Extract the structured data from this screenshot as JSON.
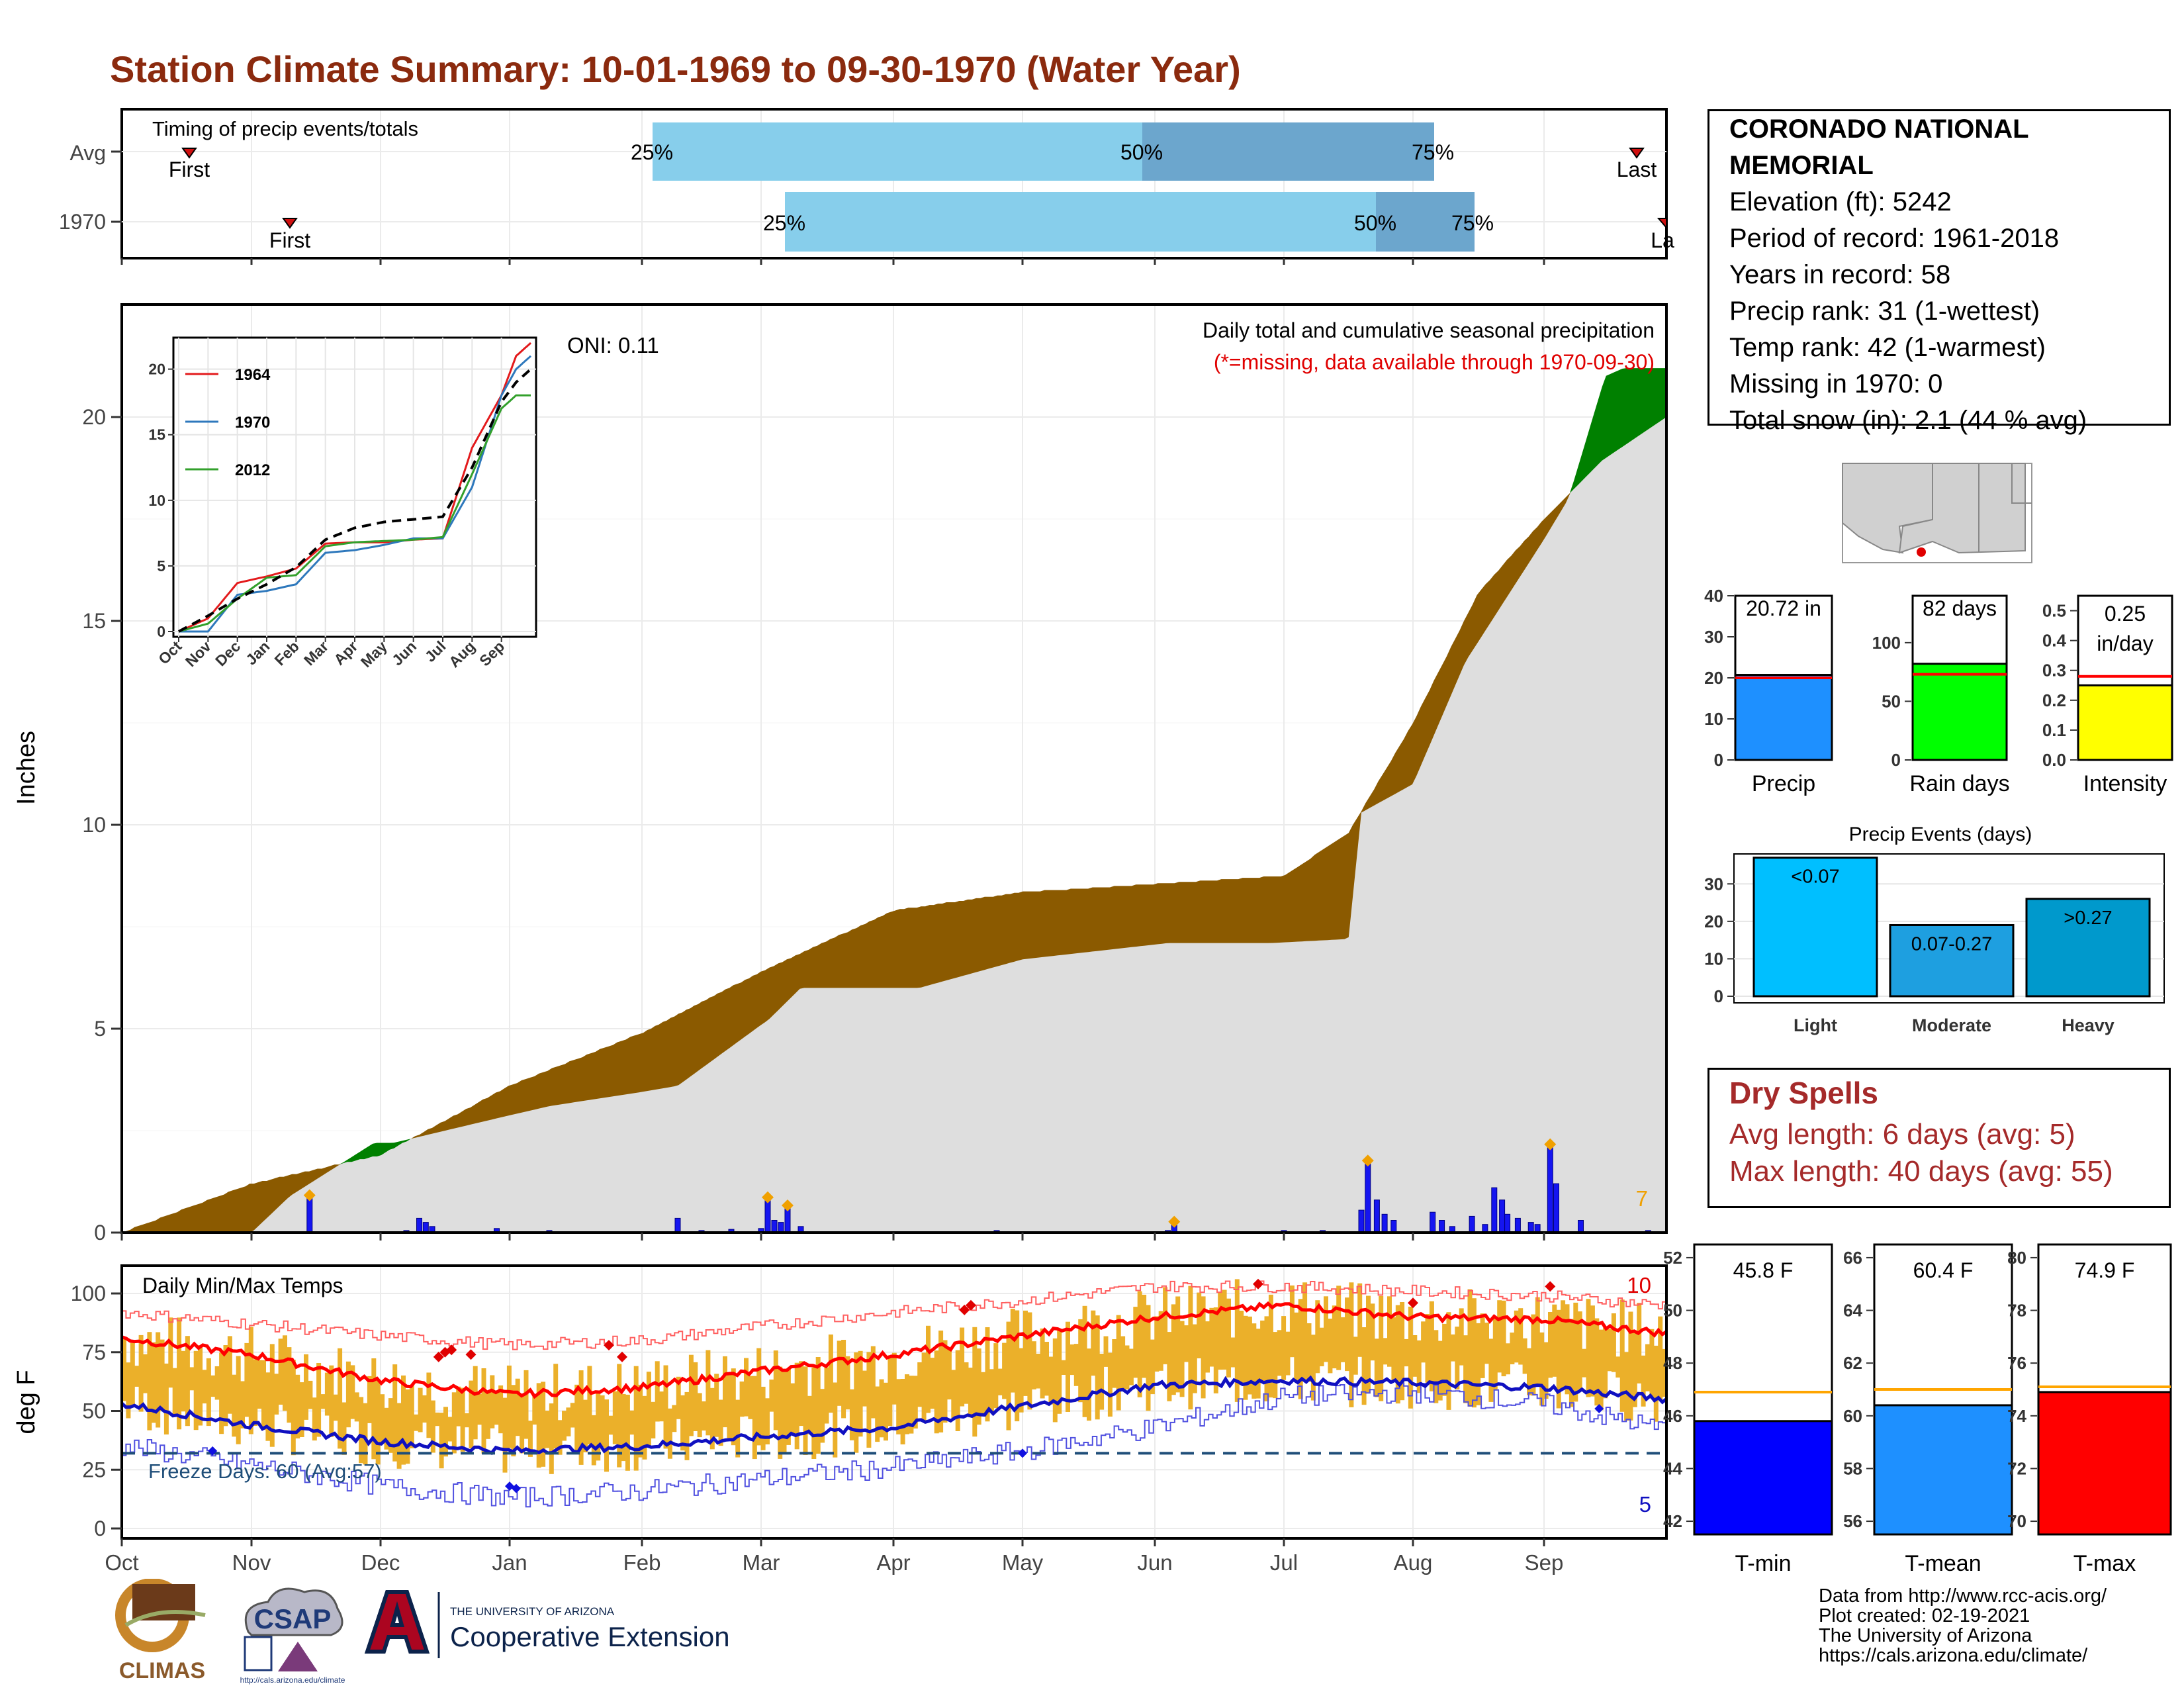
{
  "title": "Station Climate Summary: 10-01-1969 to 09-30-1970 (Water Year)",
  "months": [
    "Oct",
    "Nov",
    "Dec",
    "Jan",
    "Feb",
    "Mar",
    "Apr",
    "May",
    "Jun",
    "Jul",
    "Aug",
    "Sep"
  ],
  "timing": {
    "label": "Timing of precip events/totals",
    "rows": [
      {
        "name": "Avg",
        "first_label": "First",
        "last_label": "Last",
        "p25_label": "25%",
        "p50_label": "50%",
        "p75_label": "75%"
      },
      {
        "name": "1970",
        "first_label": "First",
        "last_label": "La",
        "p25_label": "25%",
        "p50_label": "50%",
        "p75_label": "75%"
      }
    ]
  },
  "station": {
    "name": "CORONADO NATIONAL MEMORIAL",
    "elevation": "Elevation (ft): 5242",
    "period": "Period of record: 1961-2018",
    "years": "Years in record: 58",
    "precip_rank": "Precip rank: 31 (1-wettest)",
    "temp_rank": "Temp rank: 42 (1-warmest)",
    "missing": "Missing in 1970: 0",
    "snow": "Total snow (in): 2.1 (44 % avg)"
  },
  "precip_panel": {
    "ylabel": "Inches",
    "y_ticks": [
      "0",
      "5",
      "10",
      "15",
      "20"
    ],
    "oni": "ONI: 0.11",
    "title": "Daily total and cumulative seasonal precipitation",
    "note": "(*=missing, data available through 1970-09-30)",
    "extreme_count": "7"
  },
  "inset": {
    "y_ticks": [
      "0",
      "5",
      "10",
      "15",
      "20"
    ],
    "x_ticks": [
      "Oct",
      "Nov",
      "Dec",
      "Jan",
      "Feb",
      "Mar",
      "Apr",
      "May",
      "Jun",
      "Jul",
      "Aug",
      "Sep"
    ],
    "legend": [
      "1964",
      "1970",
      "2012"
    ]
  },
  "temp_panel": {
    "label": "Daily Min/Max Temps",
    "ylabel": "deg F",
    "y_ticks": [
      "0",
      "25",
      "50",
      "75",
      "100"
    ],
    "freeze": "Freeze Days: 60 (Avg:57)",
    "hot_count": "10",
    "cold_count": "5"
  },
  "mini_bars": {
    "precip": {
      "label": "Precip",
      "value_label": "20.72 in",
      "ticks": [
        "0",
        "10",
        "20",
        "30",
        "40"
      ]
    },
    "rain_days": {
      "label": "Rain days",
      "value_label": "82 days",
      "ticks": [
        "0",
        "50",
        "100"
      ]
    },
    "intensity": {
      "label": "Intensity",
      "value_label_1": "0.25",
      "value_label_2": "in/day",
      "ticks": [
        "0.0",
        "0.1",
        "0.2",
        "0.3",
        "0.4",
        "0.5"
      ]
    }
  },
  "events": {
    "title": "Precip Events (days)",
    "ticks": [
      "0",
      "10",
      "20",
      "30"
    ],
    "bars": [
      {
        "cat": "Light",
        "label": "<0.07",
        "value": 37
      },
      {
        "cat": "Moderate",
        "label": "0.07-0.27",
        "value": 19
      },
      {
        "cat": "Heavy",
        "label": ">0.27",
        "value": 26
      }
    ]
  },
  "dry_spells": {
    "title": "Dry Spells",
    "avg": "Avg length: 6 days (avg: 5)",
    "max": "Max length: 40 days (avg: 55)"
  },
  "temp_bars": {
    "tmin": {
      "label": "T-min",
      "value_label": "45.8 F",
      "ticks": [
        "42",
        "44",
        "46",
        "48",
        "50",
        "52"
      ]
    },
    "tmean": {
      "label": "T-mean",
      "value_label": "60.4 F",
      "ticks": [
        "56",
        "58",
        "60",
        "62",
        "64",
        "66"
      ]
    },
    "tmax": {
      "label": "T-max",
      "value_label": "74.9 F",
      "ticks": [
        "70",
        "72",
        "74",
        "76",
        "78",
        "80"
      ]
    }
  },
  "credits": {
    "line1": "Data from http://www.rcc-acis.org/",
    "line2": "Plot created: 02-19-2021",
    "line3": "The University of Arizona",
    "line4": "https://cals.arizona.edu/climate/"
  },
  "logos": {
    "climas": "CLIMAS",
    "csap": "CSAP",
    "csap_url": "http://cals.arizona.edu/climate",
    "ua_top": "THE UNIVERSITY OF ARIZONA",
    "ua_bottom": "Cooperative Extension"
  },
  "colors": {
    "title": "#8B2A0E",
    "deficit": "#8B5A00",
    "surplus": "#008000",
    "observed_line": "#1515D6",
    "normal_fill": "#DEDEDE",
    "timing_light": "#87CEEB",
    "timing_dark": "#6CA6CD",
    "temp_bars": "#EBB02A",
    "tmax_line": "#FF0000",
    "tmin_line": "#1010C0"
  },
  "chart_data": [
    {
      "type": "area",
      "name": "cumulative precipitation",
      "x_unit": "month (water year, Oct=0)",
      "ylabel": "Inches",
      "ylim": [
        0,
        22.7
      ],
      "series": [
        {
          "name": "average",
          "x": [
            0,
            1,
            2,
            3,
            4,
            5,
            6,
            7,
            8,
            9,
            9.5,
            10,
            10.5,
            11,
            11.5,
            12
          ],
          "y": [
            0,
            1.2,
            1.9,
            3.6,
            4.9,
            6.4,
            7.9,
            8.35,
            8.55,
            8.75,
            9.8,
            12.5,
            15.7,
            17.5,
            19.0,
            20.0
          ]
        },
        {
          "name": "observed 1970",
          "x": [
            0,
            1,
            1.3,
            1.95,
            2.1,
            3.3,
            4.3,
            5.05,
            5.3,
            6.2,
            7,
            8.1,
            8.9,
            9.5,
            9.6,
            10,
            10.4,
            10.8,
            11.2,
            11.5,
            11.65,
            12
          ],
          "y": [
            0,
            0,
            0.9,
            2.2,
            2.2,
            3.1,
            3.6,
            5.2,
            6.0,
            6.0,
            6.7,
            7.1,
            7.1,
            7.2,
            10.3,
            11.0,
            14.0,
            16.0,
            18.0,
            21.0,
            21.2,
            21.2
          ]
        }
      ],
      "daily_highlights": [
        {
          "x": 1.45,
          "y": 0.85
        },
        {
          "x": 5.05,
          "y": 0.8
        },
        {
          "x": 5.2,
          "y": 0.6
        },
        {
          "x": 8.15,
          "y": 0.2
        },
        {
          "x": 9.65,
          "y": 1.7
        },
        {
          "x": 11.05,
          "y": 2.1
        }
      ]
    },
    {
      "type": "line",
      "name": "inset cumulative comparison",
      "ylim": [
        0,
        22
      ],
      "series": [
        {
          "name": "1964",
          "x": [
            0,
            1,
            2,
            3,
            4,
            5,
            6,
            7,
            8,
            9,
            10,
            11,
            11.5,
            12
          ],
          "y": [
            0,
            1,
            3.7,
            4.2,
            4.8,
            6.7,
            6.8,
            6.8,
            7.0,
            7.1,
            14,
            18,
            21,
            22
          ]
        },
        {
          "name": "1970",
          "x": [
            0,
            1,
            2,
            3,
            4,
            5,
            6,
            7,
            8,
            9,
            10,
            11,
            11.5,
            12
          ],
          "y": [
            0,
            0,
            2.8,
            3.1,
            3.6,
            6.0,
            6.2,
            6.6,
            7.1,
            7.1,
            11,
            18,
            20,
            21
          ]
        },
        {
          "name": "2012",
          "x": [
            0,
            1,
            2,
            3,
            4,
            5,
            6,
            7,
            8,
            9,
            10,
            11,
            11.5,
            12
          ],
          "y": [
            0,
            0.6,
            2.5,
            4.1,
            4.3,
            6.5,
            6.8,
            6.9,
            7.0,
            7.2,
            12,
            17,
            18,
            18
          ]
        },
        {
          "name": "average",
          "x": [
            0,
            1,
            2,
            3,
            4,
            5,
            6,
            7,
            8,
            9,
            10,
            11,
            11.5,
            12
          ],
          "y": [
            0,
            1.2,
            2.5,
            3.6,
            4.9,
            7.0,
            7.9,
            8.35,
            8.55,
            8.75,
            12.5,
            17.5,
            19,
            20
          ]
        }
      ]
    },
    {
      "type": "line",
      "name": "daily temperatures",
      "ylabel": "deg F",
      "ylim": [
        -3,
        110
      ],
      "series": [
        {
          "name": "avg max",
          "x": [
            0,
            1,
            2,
            3,
            4,
            5,
            6,
            7,
            8,
            9,
            10,
            11,
            12
          ],
          "y": [
            81,
            74,
            63,
            57,
            60,
            67,
            74,
            82,
            90,
            95,
            90,
            89,
            83
          ]
        },
        {
          "name": "avg min",
          "x": [
            0,
            1,
            2,
            3,
            4,
            5,
            6,
            7,
            8,
            9,
            10,
            11,
            12
          ],
          "y": [
            53,
            44,
            37,
            33,
            35,
            39,
            43,
            52,
            61,
            63,
            62,
            60,
            55
          ]
        },
        {
          "name": "record max",
          "x": [
            0,
            1,
            2,
            3,
            4,
            5,
            6,
            7,
            8,
            9,
            10,
            11,
            12
          ],
          "y": [
            92,
            87,
            82,
            78,
            80,
            86,
            92,
            97,
            103,
            103,
            101,
            99,
            95
          ]
        },
        {
          "name": "record min",
          "x": [
            0,
            1,
            2,
            3,
            4,
            5,
            6,
            7,
            8,
            9,
            10,
            11,
            12
          ],
          "y": [
            35,
            27,
            18,
            13,
            16,
            21,
            26,
            33,
            43,
            56,
            58,
            53,
            42
          ]
        }
      ],
      "freeze_line": 32
    },
    {
      "type": "bar",
      "name": "Precip",
      "categories": [
        "Precip"
      ],
      "values": [
        20.72
      ],
      "average": 20.0,
      "ylim": [
        0,
        40
      ]
    },
    {
      "type": "bar",
      "name": "Rain days",
      "categories": [
        "Rain days"
      ],
      "values": [
        82
      ],
      "average": 73,
      "ylim": [
        0,
        140
      ]
    },
    {
      "type": "bar",
      "name": "Intensity",
      "categories": [
        "Intensity"
      ],
      "values": [
        0.25
      ],
      "average": 0.28,
      "ylim": [
        0,
        0.55
      ]
    },
    {
      "type": "bar",
      "name": "Precip Events (days)",
      "categories": [
        "Light",
        "Moderate",
        "Heavy"
      ],
      "values": [
        37,
        19,
        26
      ],
      "ylim": [
        0,
        38
      ]
    },
    {
      "type": "bar",
      "name": "T-min",
      "categories": [
        "T-min"
      ],
      "values": [
        45.8
      ],
      "average": 46.9,
      "ylim": [
        41.5,
        52.5
      ]
    },
    {
      "type": "bar",
      "name": "T-mean",
      "categories": [
        "T-mean"
      ],
      "values": [
        60.4
      ],
      "average": 61.0,
      "ylim": [
        55.5,
        66.5
      ]
    },
    {
      "type": "bar",
      "name": "T-max",
      "categories": [
        "T-max"
      ],
      "values": [
        74.9
      ],
      "average": 75.1,
      "ylim": [
        69.5,
        80.5
      ]
    }
  ]
}
